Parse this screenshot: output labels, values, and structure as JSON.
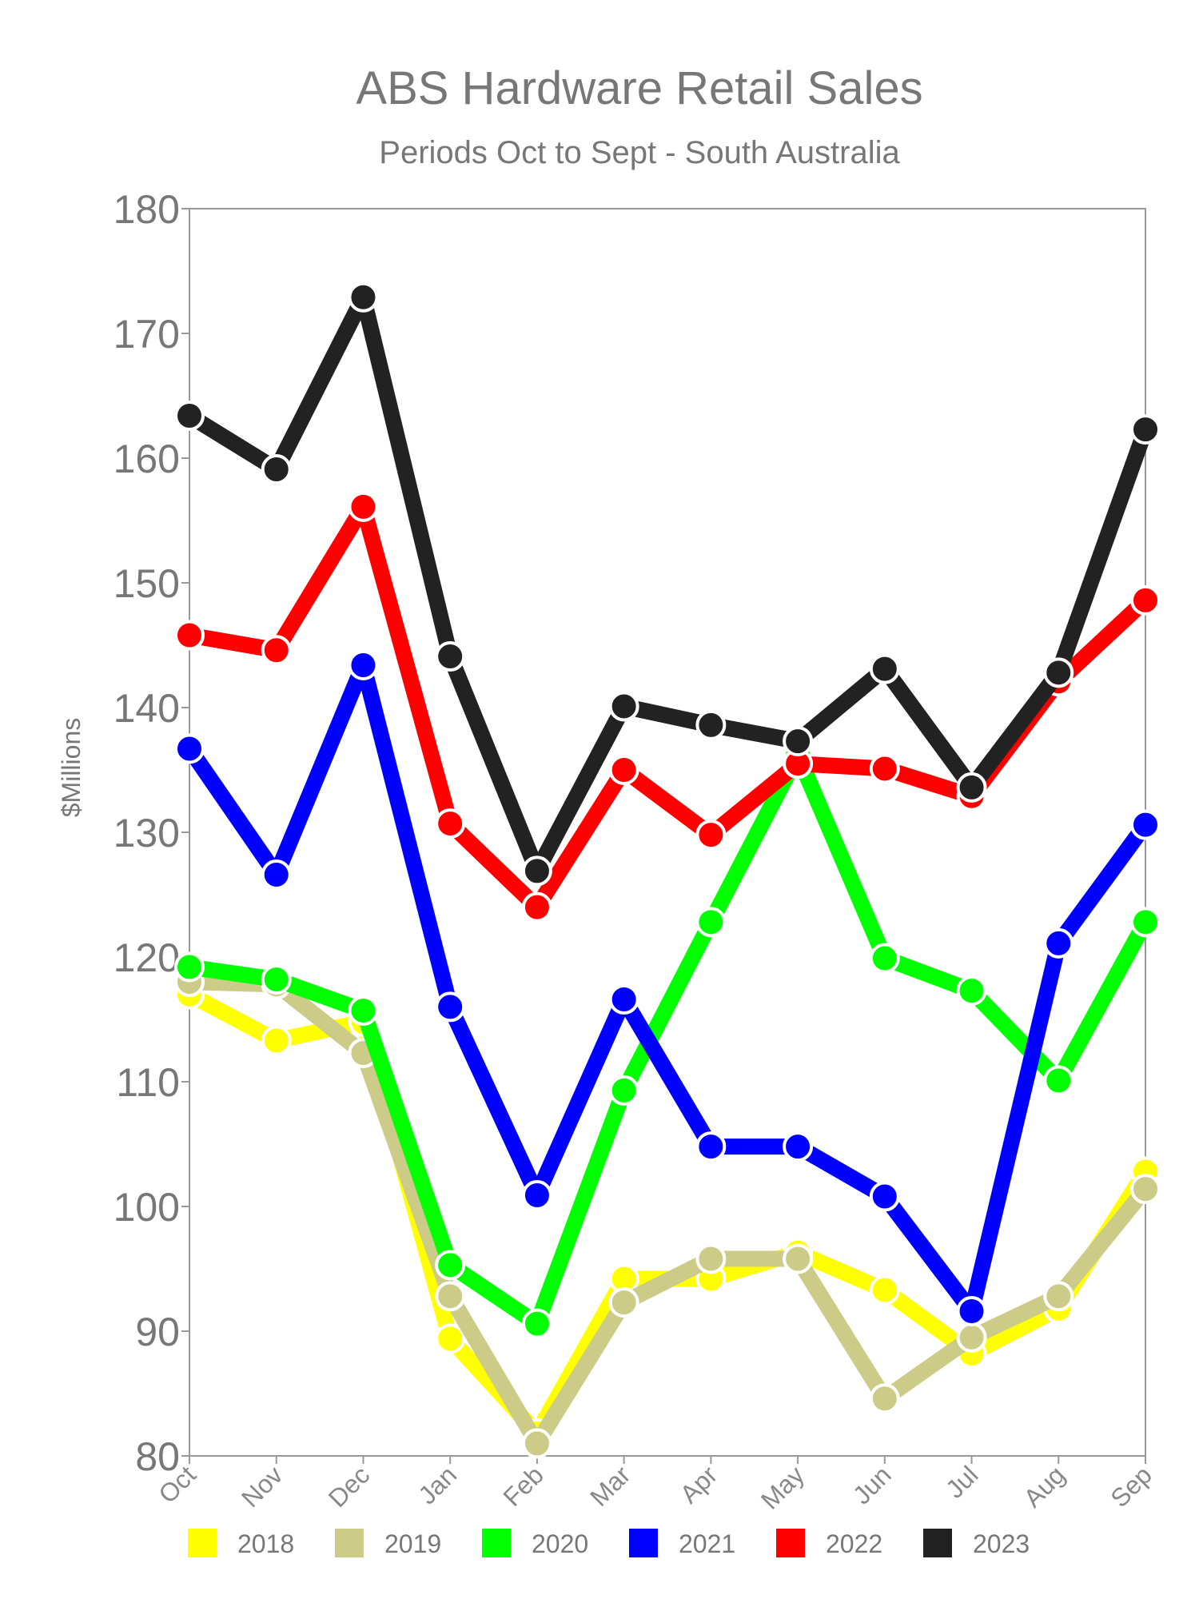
{
  "chart_data": {
    "type": "line",
    "title": "ABS Hardware Retail Sales",
    "subtitle": "Periods Oct to Sept - South Australia",
    "ylabel": "$Millions",
    "xlabel": "",
    "categories": [
      "Oct",
      "Nov",
      "Dec",
      "Jan",
      "Feb",
      "Mar",
      "Apr",
      "May",
      "Jun",
      "Jul",
      "Aug",
      "Sep"
    ],
    "ylim": [
      80,
      180
    ],
    "yticks": [
      80,
      90,
      100,
      110,
      120,
      130,
      140,
      150,
      160,
      170,
      180
    ],
    "grid": false,
    "legend_position": "bottom",
    "series": [
      {
        "name": "2018",
        "color": "#ffff00",
        "values": [
          117,
          113.3,
          114.8,
          89.4,
          81.8,
          94.2,
          94.2,
          96.3,
          93.3,
          88.2,
          91.8,
          102.8
        ]
      },
      {
        "name": "2019",
        "color": "#cccc88",
        "values": [
          118,
          117.8,
          112.3,
          92.8,
          81,
          92.3,
          95.8,
          95.8,
          84.6,
          89.5,
          92.8,
          101.4
        ]
      },
      {
        "name": "2020",
        "color": "#00ff00",
        "values": [
          119.2,
          118.2,
          115.7,
          95.3,
          90.6,
          109.3,
          122.8,
          136.2,
          119.9,
          117.3,
          110.1,
          122.8
        ]
      },
      {
        "name": "2021",
        "color": "#0000ff",
        "values": [
          136.7,
          126.6,
          143.4,
          116,
          100.9,
          116.6,
          104.8,
          104.8,
          100.8,
          91.6,
          121.1,
          130.6
        ]
      },
      {
        "name": "2022",
        "color": "#ff0000",
        "values": [
          145.8,
          144.6,
          156.1,
          130.7,
          124,
          135,
          129.8,
          135.5,
          135.1,
          132.9,
          142.1,
          148.6
        ]
      },
      {
        "name": "2023",
        "color": "#222222",
        "values": [
          163.4,
          159.1,
          172.9,
          144.1,
          126.9,
          140.1,
          138.6,
          137.3,
          143.1,
          133.6,
          142.8,
          162.3
        ]
      }
    ]
  }
}
